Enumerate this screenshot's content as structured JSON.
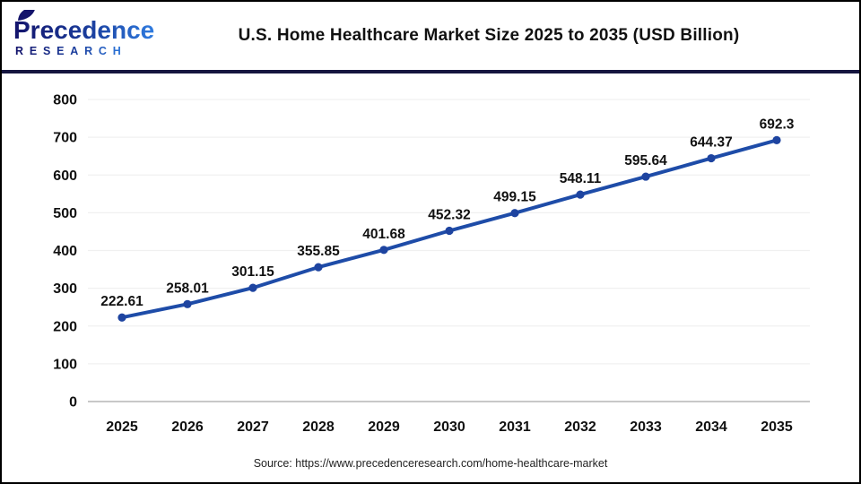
{
  "header": {
    "logo": {
      "line1": "Precedence",
      "line2": "RESEARCH"
    },
    "title": "U.S. Home Healthcare Market Size 2025 to 2035 (USD Billion)"
  },
  "footer": {
    "source": "Source: https://www.precedenceresearch.com/home-healthcare-market"
  },
  "colors": {
    "line": "#1e4ca8",
    "marker": "#1e44a0",
    "separator": "#15153f",
    "grid": "#f0f0f0",
    "axis_line": "#c8c8c8",
    "tick_label": "#111111",
    "data_label": "#111111",
    "logo_dark": "#13136b",
    "logo_light": "#2f7ce0"
  },
  "chart_data": {
    "type": "line",
    "title": "U.S. Home Healthcare Market Size 2025 to 2035 (USD Billion)",
    "categories": [
      "2025",
      "2026",
      "2027",
      "2028",
      "2029",
      "2030",
      "2031",
      "2032",
      "2033",
      "2034",
      "2035"
    ],
    "values": [
      222.61,
      258.01,
      301.15,
      355.85,
      401.68,
      452.32,
      499.15,
      548.11,
      595.64,
      644.37,
      692.3
    ],
    "value_labels": [
      "222.61",
      "258.01",
      "301.15",
      "355.85",
      "401.68",
      "452.32",
      "499.15",
      "548.11",
      "595.64",
      "644.37",
      "692.3"
    ],
    "xlabel": "",
    "ylabel": "",
    "ylim": [
      0,
      800
    ],
    "ytick_interval": 100,
    "grid": true,
    "legend": "none"
  }
}
